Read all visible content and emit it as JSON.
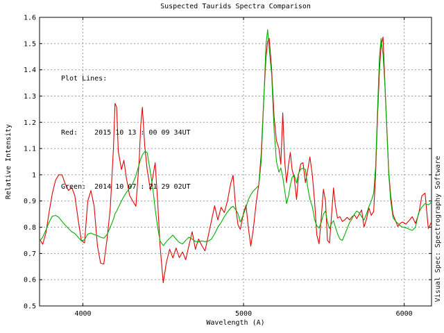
{
  "chart": {
    "title": "Suspected Taurids Spectra Comparison",
    "xlabel": "Wavelength (A)",
    "ylabel": "Relative Intensity",
    "watermark": "Visual Spec: Spectrography Software"
  },
  "legend": {
    "heading": "Plot Lines:",
    "red_line": "Red:    2015 10 13 : 00 09 34UT",
    "green_line": "Green:  2014 10 07 : 21 29 02UT"
  },
  "colors": {
    "red_series": "#e00000",
    "green_series": "#00ae00",
    "grid": "#999999",
    "frame": "#000000",
    "background": "#ffffff",
    "text": "#000000"
  },
  "chart_data": {
    "type": "line",
    "title": "Suspected Taurids Spectra Comparison",
    "xlabel": "Wavelength (A)",
    "ylabel": "Relative Intensity",
    "xlim": [
      3730,
      6170
    ],
    "ylim": [
      0.5,
      1.6
    ],
    "x_ticks": [
      4000,
      5000,
      6000
    ],
    "x_tick_labels": [
      "4000",
      "5000",
      "6000"
    ],
    "y_ticks": [
      0.5,
      0.6,
      0.7,
      0.8,
      0.9,
      1.0,
      1.1,
      1.2,
      1.3,
      1.4,
      1.5,
      1.6
    ],
    "y_tick_labels": [
      "0.5",
      "0.6",
      "0.7",
      "0.8",
      "0.9",
      "1",
      "1.1",
      "1.2",
      "1.3",
      "1.4",
      "1.5",
      "1.6"
    ],
    "grid": "dashed",
    "legend_position": "upper-left-inside",
    "x": [
      3730,
      3750,
      3770,
      3790,
      3810,
      3830,
      3850,
      3870,
      3890,
      3910,
      3930,
      3950,
      3970,
      3990,
      4010,
      4030,
      4050,
      4070,
      4090,
      4110,
      4130,
      4150,
      4170,
      4190,
      4200,
      4210,
      4220,
      4240,
      4255,
      4270,
      4290,
      4310,
      4330,
      4350,
      4360,
      4370,
      4385,
      4400,
      4420,
      4435,
      4450,
      4465,
      4480,
      4500,
      4520,
      4540,
      4560,
      4580,
      4600,
      4620,
      4640,
      4660,
      4680,
      4700,
      4720,
      4740,
      4760,
      4780,
      4800,
      4820,
      4840,
      4860,
      4880,
      4900,
      4920,
      4935,
      4950,
      4965,
      4980,
      5000,
      5015,
      5030,
      5045,
      5060,
      5080,
      5095,
      5110,
      5125,
      5140,
      5150,
      5160,
      5175,
      5190,
      5205,
      5220,
      5232,
      5244,
      5256,
      5268,
      5280,
      5291,
      5302,
      5315,
      5330,
      5342,
      5356,
      5370,
      5385,
      5400,
      5413,
      5428,
      5442,
      5456,
      5470,
      5484,
      5497,
      5510,
      5522,
      5535,
      5548,
      5560,
      5572,
      5585,
      5600,
      5615,
      5630,
      5645,
      5660,
      5675,
      5690,
      5705,
      5720,
      5735,
      5750,
      5765,
      5780,
      5795,
      5810,
      5822,
      5834,
      5846,
      5856,
      5868,
      5880,
      5892,
      5904,
      5916,
      5930,
      5945,
      5960,
      5975,
      5990,
      6010,
      6030,
      6050,
      6070,
      6090,
      6110,
      6130,
      6150,
      6170
    ],
    "series": [
      {
        "name": "Red: 2015 10 13 : 00 09 34UT",
        "color": "#e00000",
        "values": [
          0.755,
          0.735,
          0.78,
          0.86,
          0.93,
          0.98,
          1.0,
          1.0,
          0.965,
          0.94,
          0.952,
          0.92,
          0.83,
          0.75,
          0.74,
          0.9,
          0.94,
          0.88,
          0.73,
          0.663,
          0.66,
          0.755,
          0.87,
          1.1,
          1.272,
          1.258,
          1.09,
          1.02,
          1.055,
          0.99,
          0.922,
          0.9,
          0.88,
          1.054,
          1.19,
          1.257,
          1.108,
          1.02,
          0.941,
          0.99,
          1.046,
          0.9,
          0.73,
          0.588,
          0.668,
          0.716,
          0.683,
          0.721,
          0.684,
          0.706,
          0.676,
          0.73,
          0.783,
          0.716,
          0.755,
          0.73,
          0.71,
          0.766,
          0.825,
          0.882,
          0.828,
          0.876,
          0.856,
          0.9,
          0.967,
          0.998,
          0.882,
          0.81,
          0.792,
          0.856,
          0.884,
          0.798,
          0.728,
          0.79,
          0.9,
          0.965,
          1.08,
          1.28,
          1.45,
          1.508,
          1.52,
          1.4,
          1.22,
          1.13,
          1.1,
          1.04,
          1.236,
          1.05,
          0.97,
          1.04,
          1.085,
          1.02,
          0.99,
          0.906,
          1.0,
          1.041,
          1.046,
          0.97,
          1.02,
          1.068,
          1.0,
          0.9,
          0.77,
          0.737,
          0.84,
          0.945,
          0.9,
          0.75,
          0.74,
          0.85,
          0.95,
          0.88,
          0.835,
          0.84,
          0.822,
          0.828,
          0.838,
          0.828,
          0.84,
          0.847,
          0.833,
          0.85,
          0.866,
          0.801,
          0.83,
          0.874,
          0.845,
          0.86,
          1.0,
          1.22,
          1.4,
          1.49,
          1.525,
          1.35,
          1.18,
          1.01,
          0.92,
          0.85,
          0.826,
          0.803,
          0.815,
          0.82,
          0.812,
          0.825,
          0.84,
          0.815,
          0.85,
          0.92,
          0.93,
          0.795,
          0.82
        ]
      },
      {
        "name": "Green: 2014 10 07 : 21 29 02UT",
        "color": "#00ae00",
        "values": [
          0.747,
          0.762,
          0.79,
          0.82,
          0.842,
          0.845,
          0.838,
          0.822,
          0.808,
          0.795,
          0.783,
          0.776,
          0.762,
          0.748,
          0.752,
          0.774,
          0.778,
          0.772,
          0.768,
          0.762,
          0.758,
          0.772,
          0.8,
          0.83,
          0.852,
          0.861,
          0.875,
          0.9,
          0.917,
          0.932,
          0.948,
          0.966,
          0.996,
          1.04,
          1.06,
          1.076,
          1.088,
          1.085,
          1.01,
          0.95,
          0.87,
          0.8,
          0.748,
          0.73,
          0.745,
          0.758,
          0.77,
          0.755,
          0.742,
          0.736,
          0.75,
          0.762,
          0.755,
          0.746,
          0.744,
          0.748,
          0.745,
          0.747,
          0.755,
          0.775,
          0.8,
          0.818,
          0.84,
          0.858,
          0.874,
          0.88,
          0.868,
          0.852,
          0.82,
          0.85,
          0.876,
          0.906,
          0.924,
          0.938,
          0.95,
          0.96,
          1.05,
          1.27,
          1.5,
          1.553,
          1.48,
          1.38,
          1.17,
          1.05,
          1.01,
          1.026,
          0.99,
          0.94,
          0.89,
          0.92,
          0.96,
          0.99,
          1.0,
          0.968,
          1.005,
          1.022,
          1.025,
          1.02,
          0.95,
          0.906,
          0.878,
          0.83,
          0.805,
          0.797,
          0.82,
          0.85,
          0.862,
          0.82,
          0.795,
          0.815,
          0.825,
          0.8,
          0.775,
          0.755,
          0.75,
          0.772,
          0.795,
          0.818,
          0.832,
          0.85,
          0.862,
          0.855,
          0.84,
          0.828,
          0.85,
          0.878,
          0.9,
          0.93,
          1.03,
          1.25,
          1.45,
          1.52,
          1.46,
          1.34,
          1.17,
          1.0,
          0.9,
          0.838,
          0.824,
          0.815,
          0.806,
          0.8,
          0.798,
          0.793,
          0.788,
          0.8,
          0.855,
          0.877,
          0.89,
          0.885,
          0.895
        ]
      }
    ]
  }
}
